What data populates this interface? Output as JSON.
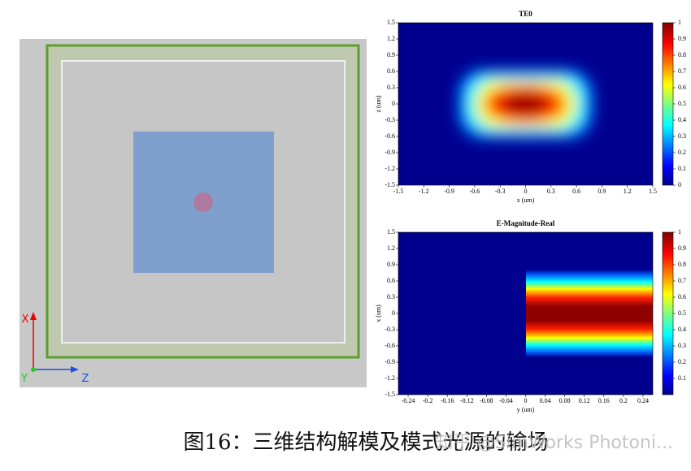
{
  "view3d": {
    "axis_labels": [
      "X",
      "Y",
      "Z"
    ]
  },
  "chart_data": [
    {
      "type": "heatmap",
      "title": "TE0",
      "xlabel": "x (um)",
      "ylabel": "z (um)",
      "xlim": [
        -1.5,
        1.5
      ],
      "xticks": [
        -1.5,
        -1.2,
        -0.9,
        -0.6,
        -0.3,
        0,
        0.3,
        0.6,
        0.9,
        1.2,
        1.5
      ],
      "ylim": [
        -1.5,
        1.5
      ],
      "yticks": [
        -1.5,
        -1.2,
        -0.9,
        -0.6,
        -0.3,
        0,
        0.3,
        0.6,
        0.9,
        1.2,
        1.5
      ],
      "colorbar": {
        "lim": [
          0,
          1
        ],
        "ticks": [
          0,
          0.1,
          0.2,
          0.3,
          0.4,
          0.5,
          0.6,
          0.7,
          0.8,
          0.9,
          1
        ]
      }
    },
    {
      "type": "heatmap",
      "title": "E-Magnitude-Real",
      "xlabel": "y (um)",
      "ylabel": "x (um)",
      "xlim": [
        -0.26,
        0.26
      ],
      "xticks": [
        -0.24,
        -0.2,
        -0.16,
        -0.12,
        -0.08,
        -0.04,
        0,
        0.04,
        0.08,
        0.12,
        0.16,
        0.2,
        0.24
      ],
      "ylim": [
        -1.5,
        1.5
      ],
      "yticks": [
        -1.5,
        -1.2,
        -0.9,
        -0.6,
        -0.3,
        0,
        0.3,
        0.6,
        0.9,
        1.2,
        1.5
      ],
      "colorbar": {
        "lim": [
          0,
          1
        ],
        "ticks": [
          0.1,
          0.2,
          0.3,
          0.4,
          0.5,
          0.6,
          0.7,
          0.8,
          0.9,
          1
        ]
      }
    }
  ],
  "caption": "图16：三维结构解模及模式光源的输场",
  "watermark": "知乎 @SimWorks Photoni..."
}
